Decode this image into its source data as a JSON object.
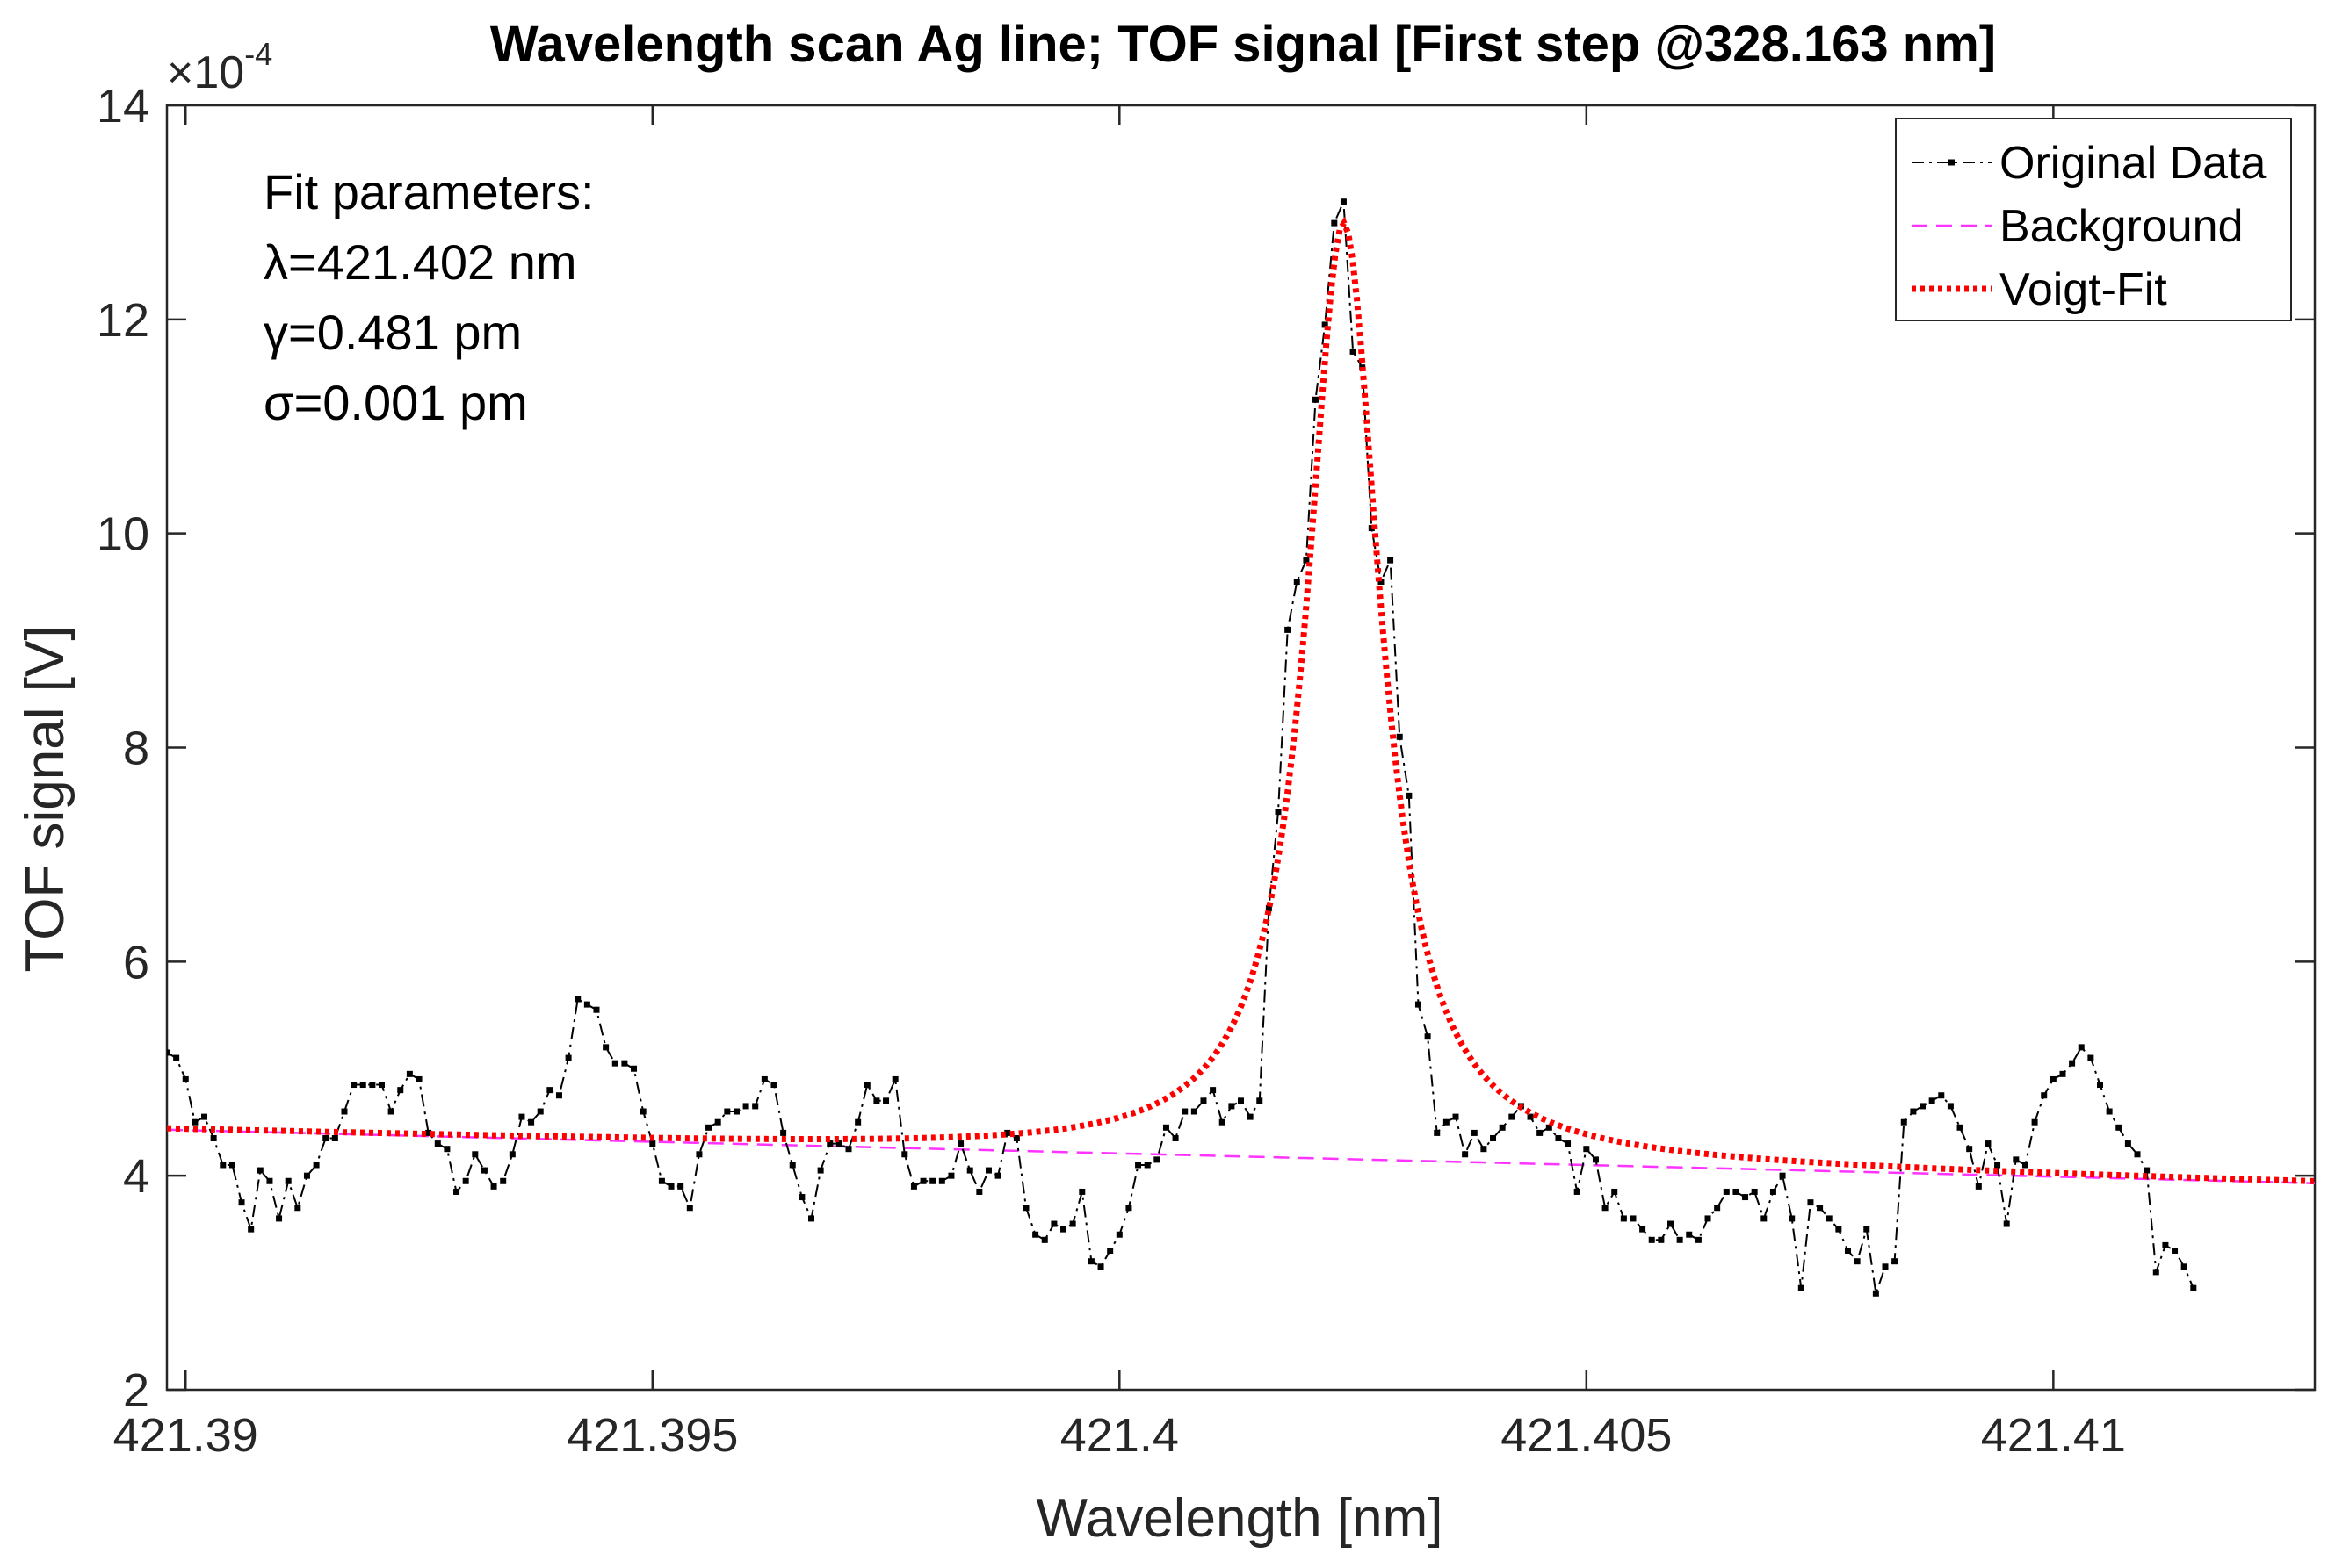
{
  "chart_data": {
    "type": "line",
    "title": "Wavelength scan Ag line; TOF signal [First step @328.163 nm]",
    "xlabel": "Wavelength [nm]",
    "ylabel": "TOF signal [V]",
    "y_exponent_label": "×10",
    "y_exponent_power": "-4",
    "xlim": [
      421.3898,
      421.4128
    ],
    "ylim": [
      2,
      14
    ],
    "x_ticks": [
      421.39,
      421.395,
      421.4,
      421.405,
      421.41
    ],
    "x_tick_labels": [
      "421.39",
      "421.395",
      "421.4",
      "421.405",
      "421.41"
    ],
    "y_ticks": [
      2,
      4,
      6,
      8,
      10,
      12,
      14
    ],
    "y_tick_labels": [
      "2",
      "4",
      "6",
      "8",
      "10",
      "12",
      "14"
    ],
    "grid": false,
    "legend_position": "top-right",
    "legend": [
      {
        "name": "Original Data",
        "color": "#000000",
        "style": "dash-dot with point markers"
      },
      {
        "name": "Background",
        "color": "#ff33ff",
        "style": "dashed"
      },
      {
        "name": "Voigt-Fit",
        "color": "#ff0000",
        "style": "dotted"
      }
    ],
    "annotation_lines": [
      "Fit parameters:",
      "λ=421.402 nm",
      "γ=0.481 pm",
      "σ=0.001 pm"
    ],
    "series": [
      {
        "name": "Original Data",
        "x_start": 421.3898,
        "x_step": 0.0001,
        "values": [
          5.15,
          5.1,
          4.9,
          4.5,
          4.55,
          4.35,
          4.1,
          4.1,
          3.75,
          3.5,
          4.05,
          3.95,
          3.6,
          3.95,
          3.7,
          4.0,
          4.1,
          4.35,
          4.35,
          4.6,
          4.85,
          4.85,
          4.85,
          4.85,
          4.6,
          4.8,
          4.95,
          4.9,
          4.4,
          4.3,
          4.25,
          3.85,
          3.95,
          4.2,
          4.05,
          3.9,
          3.95,
          4.2,
          4.55,
          4.5,
          4.6,
          4.8,
          4.75,
          5.1,
          5.65,
          5.6,
          5.55,
          5.2,
          5.05,
          5.05,
          5.0,
          4.6,
          4.3,
          3.95,
          3.9,
          3.9,
          3.7,
          4.2,
          4.45,
          4.5,
          4.6,
          4.6,
          4.65,
          4.65,
          4.9,
          4.85,
          4.4,
          4.1,
          3.8,
          3.6,
          4.05,
          4.3,
          4.3,
          4.25,
          4.5,
          4.85,
          4.7,
          4.7,
          4.9,
          4.2,
          3.9,
          3.95,
          3.95,
          3.95,
          4.0,
          4.3,
          4.05,
          3.85,
          4.05,
          4.0,
          4.4,
          4.35,
          3.7,
          3.45,
          3.4,
          3.55,
          3.5,
          3.55,
          3.85,
          3.2,
          3.15,
          3.3,
          3.45,
          3.7,
          4.1,
          4.1,
          4.15,
          4.45,
          4.35,
          4.6,
          4.6,
          4.7,
          4.8,
          4.5,
          4.65,
          4.7,
          4.55,
          4.7,
          6.5,
          7.4,
          9.1,
          9.55,
          9.75,
          11.25,
          11.95,
          12.9,
          13.1,
          11.7,
          11.55,
          10.05,
          9.55,
          9.75,
          8.1,
          7.55,
          5.6,
          5.3,
          4.4,
          4.5,
          4.55,
          4.2,
          4.4,
          4.25,
          4.35,
          4.45,
          4.55,
          4.65,
          4.55,
          4.4,
          4.45,
          4.35,
          4.3,
          3.85,
          4.25,
          4.15,
          3.7,
          3.85,
          3.6,
          3.6,
          3.5,
          3.4,
          3.4,
          3.55,
          3.4,
          3.45,
          3.4,
          3.6,
          3.7,
          3.85,
          3.85,
          3.8,
          3.85,
          3.6,
          3.85,
          4.0,
          3.6,
          2.95,
          3.75,
          3.7,
          3.6,
          3.5,
          3.3,
          3.2,
          3.5,
          2.9,
          3.15,
          3.2,
          4.5,
          4.6,
          4.65,
          4.7,
          4.75,
          4.65,
          4.45,
          4.25,
          3.9,
          4.3,
          4.1,
          3.55,
          4.15,
          4.1,
          4.5,
          4.75,
          4.9,
          4.95,
          5.05,
          5.2,
          5.1,
          4.85,
          4.6,
          4.45,
          4.3,
          4.2,
          4.05,
          3.1,
          3.35,
          3.3,
          3.15,
          2.95
        ]
      },
      {
        "name": "Background",
        "x": [
          421.3898,
          421.4128
        ],
        "values": [
          4.43,
          3.93
        ]
      },
      {
        "name": "Voigt-Fit",
        "center": 421.4024,
        "peak_value": 12.9,
        "hwhm_nm": 0.00048,
        "background_start": 4.43,
        "background_end": 3.93
      }
    ]
  }
}
